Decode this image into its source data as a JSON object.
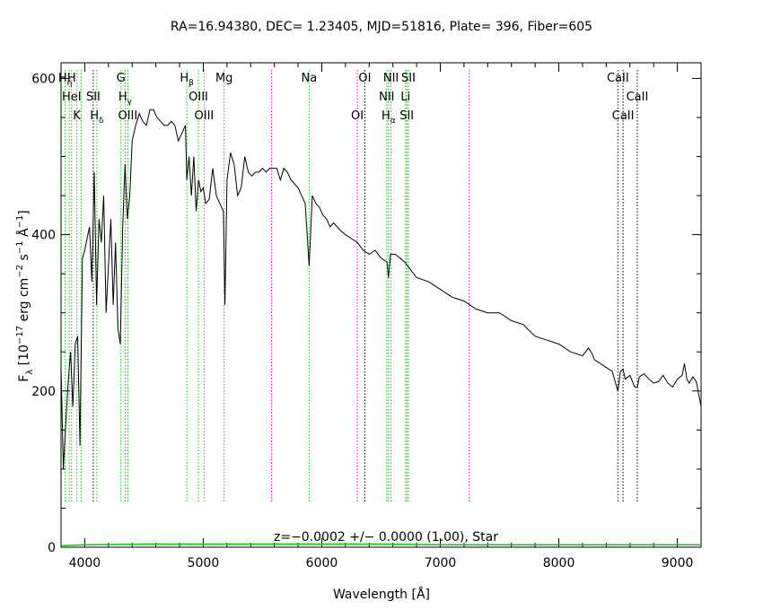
{
  "chart_data": {
    "type": "line",
    "title": "RA=16.94380, DEC= 1.23405, MJD=51816, Plate= 396, Fiber=605",
    "xlabel": "Wavelength [Å]",
    "ylabel_parts": {
      "f": "F",
      "lambda": "λ",
      "open": " [10",
      "e17": "−17",
      "erg": " erg cm",
      "e2": "−2",
      "s": " s",
      "e1a": "−1",
      "A": " Å",
      "e1b": "−1",
      "close": "]"
    },
    "xlim": [
      3800,
      9200
    ],
    "ylim": [
      0,
      620
    ],
    "x_ticks": [
      4000,
      5000,
      6000,
      7000,
      8000,
      9000
    ],
    "x_tick_labels": [
      "4000",
      "5000",
      "6000",
      "7000",
      "8000",
      "9000"
    ],
    "y_ticks": [
      0,
      200,
      400,
      600
    ],
    "y_tick_labels": [
      "0",
      "200",
      "400",
      "600"
    ],
    "annotation": "z=−0.0002 +/− 0.0000 (1.00), Star",
    "colors": {
      "flux": "#000000",
      "model": "#00cc00",
      "line_green": "#00cc00",
      "line_black": "#000000",
      "line_magenta": "#cc00cc"
    },
    "series": [
      {
        "name": "flux",
        "x": [
          3800,
          3820,
          3840,
          3860,
          3880,
          3900,
          3920,
          3940,
          3960,
          3980,
          4000,
          4020,
          4040,
          4060,
          4080,
          4100,
          4120,
          4140,
          4160,
          4180,
          4200,
          4220,
          4240,
          4260,
          4280,
          4300,
          4320,
          4340,
          4360,
          4380,
          4400,
          4430,
          4460,
          4490,
          4520,
          4550,
          4580,
          4610,
          4640,
          4670,
          4700,
          4730,
          4760,
          4790,
          4820,
          4850,
          4861,
          4880,
          4900,
          4920,
          4940,
          4960,
          4980,
          5000,
          5020,
          5050,
          5080,
          5110,
          5140,
          5170,
          5183,
          5200,
          5230,
          5260,
          5290,
          5320,
          5350,
          5380,
          5410,
          5440,
          5470,
          5500,
          5530,
          5560,
          5590,
          5620,
          5650,
          5680,
          5710,
          5740,
          5770,
          5800,
          5830,
          5860,
          5893,
          5920,
          5950,
          5980,
          6010,
          6040,
          6070,
          6100,
          6130,
          6160,
          6200,
          6250,
          6300,
          6350,
          6400,
          6450,
          6500,
          6550,
          6563,
          6580,
          6620,
          6700,
          6800,
          6900,
          7000,
          7100,
          7200,
          7300,
          7400,
          7500,
          7600,
          7700,
          7800,
          7900,
          8000,
          8100,
          8200,
          8250,
          8280,
          8300,
          8350,
          8400,
          8450,
          8498,
          8520,
          8542,
          8560,
          8600,
          8640,
          8662,
          8680,
          8720,
          8760,
          8800,
          8840,
          8880,
          8920,
          8960,
          9000,
          9040,
          9060,
          9080,
          9100,
          9130,
          9160,
          9200
        ],
        "y": [
          230,
          100,
          160,
          210,
          250,
          180,
          260,
          270,
          130,
          370,
          380,
          395,
          410,
          340,
          480,
          310,
          420,
          390,
          450,
          300,
          360,
          420,
          310,
          390,
          280,
          260,
          410,
          490,
          420,
          450,
          520,
          540,
          555,
          545,
          540,
          560,
          560,
          550,
          545,
          540,
          540,
          545,
          540,
          520,
          530,
          540,
          470,
          500,
          450,
          500,
          430,
          470,
          455,
          460,
          440,
          445,
          485,
          450,
          440,
          430,
          310,
          470,
          505,
          490,
          450,
          460,
          500,
          480,
          475,
          480,
          480,
          485,
          480,
          485,
          485,
          485,
          470,
          485,
          480,
          470,
          465,
          460,
          450,
          440,
          360,
          450,
          440,
          435,
          425,
          420,
          410,
          415,
          410,
          405,
          400,
          395,
          390,
          380,
          375,
          380,
          370,
          365,
          345,
          375,
          375,
          365,
          345,
          340,
          330,
          320,
          315,
          305,
          300,
          300,
          290,
          285,
          270,
          265,
          260,
          250,
          245,
          255,
          248,
          240,
          235,
          230,
          225,
          200,
          225,
          228,
          215,
          220,
          205,
          205,
          218,
          222,
          215,
          210,
          212,
          220,
          210,
          205,
          215,
          220,
          235,
          215,
          210,
          218,
          212,
          180
        ]
      },
      {
        "name": "model",
        "x": [
          3800,
          4000,
          4500,
          5000,
          5500,
          6000,
          6500,
          7000,
          7500,
          8000,
          8500,
          9000,
          9200
        ],
        "y": [
          2,
          3,
          4,
          4,
          4,
          4,
          4,
          3,
          3,
          3,
          3,
          3,
          3
        ]
      }
    ],
    "line_markers": [
      {
        "x": 3835,
        "color": "green"
      },
      {
        "x": 3869,
        "color": "green"
      },
      {
        "x": 3889,
        "color": "green"
      },
      {
        "x": 3934,
        "color": "green"
      },
      {
        "x": 3969,
        "color": "green"
      },
      {
        "x": 4072,
        "color": "black"
      },
      {
        "x": 4102,
        "color": "green"
      },
      {
        "x": 4305,
        "color": "green"
      },
      {
        "x": 4341,
        "color": "green"
      },
      {
        "x": 4363,
        "color": "green"
      },
      {
        "x": 4861,
        "color": "green"
      },
      {
        "x": 4959,
        "color": "green"
      },
      {
        "x": 5007,
        "color": "green"
      },
      {
        "x": 5176,
        "color": "green"
      },
      {
        "x": 5577,
        "color": "magenta"
      },
      {
        "x": 5893,
        "color": "green"
      },
      {
        "x": 6300,
        "color": "magenta"
      },
      {
        "x": 6363,
        "color": "black"
      },
      {
        "x": 6548,
        "color": "green"
      },
      {
        "x": 6563,
        "color": "green"
      },
      {
        "x": 6584,
        "color": "green"
      },
      {
        "x": 6707,
        "color": "green"
      },
      {
        "x": 6717,
        "color": "green"
      },
      {
        "x": 6731,
        "color": "green"
      },
      {
        "x": 7245,
        "color": "magenta"
      },
      {
        "x": 8498,
        "color": "black"
      },
      {
        "x": 8542,
        "color": "black"
      },
      {
        "x": 8662,
        "color": "black"
      }
    ],
    "line_labels": [
      {
        "base": "H",
        "sub": "η",
        "x": 3835,
        "row": 1
      },
      {
        "base": "H",
        "sub": "",
        "x": 3889,
        "row": 1
      },
      {
        "base": "G",
        "sub": "",
        "x": 4305,
        "row": 1
      },
      {
        "base": "H",
        "sub": "β",
        "x": 4861,
        "row": 1
      },
      {
        "base": "Mg",
        "sub": "",
        "x": 5176,
        "row": 1
      },
      {
        "base": "Na",
        "sub": "",
        "x": 5893,
        "row": 1
      },
      {
        "base": "OI",
        "sub": "",
        "x": 6363,
        "row": 1
      },
      {
        "base": "NII",
        "sub": "",
        "x": 6584,
        "row": 1
      },
      {
        "base": "SII",
        "sub": "",
        "x": 6731,
        "row": 1
      },
      {
        "base": "CaII",
        "sub": "",
        "x": 8498,
        "row": 1
      },
      {
        "base": "HeI",
        "sub": "",
        "x": 3889,
        "row": 2
      },
      {
        "base": "SII",
        "sub": "",
        "x": 4072,
        "row": 2
      },
      {
        "base": "H",
        "sub": "γ",
        "x": 4341,
        "row": 2
      },
      {
        "base": "OIII",
        "sub": "",
        "x": 4959,
        "row": 2
      },
      {
        "base": "NII",
        "sub": "",
        "x": 6548,
        "row": 2
      },
      {
        "base": "Li",
        "sub": "",
        "x": 6707,
        "row": 2
      },
      {
        "base": "CaII",
        "sub": "",
        "x": 8662,
        "row": 2
      },
      {
        "base": "K",
        "sub": "",
        "x": 3934,
        "row": 3
      },
      {
        "base": "H",
        "sub": "δ",
        "x": 4102,
        "row": 3
      },
      {
        "base": "OIII",
        "sub": "",
        "x": 4363,
        "row": 3
      },
      {
        "base": "OIII",
        "sub": "",
        "x": 5007,
        "row": 3
      },
      {
        "base": "OI",
        "sub": "",
        "x": 6300,
        "row": 3
      },
      {
        "base": "H",
        "sub": "α",
        "x": 6563,
        "row": 3
      },
      {
        "base": "SII",
        "sub": "",
        "x": 6717,
        "row": 3
      },
      {
        "base": "CaII",
        "sub": "",
        "x": 8542,
        "row": 3
      }
    ]
  }
}
